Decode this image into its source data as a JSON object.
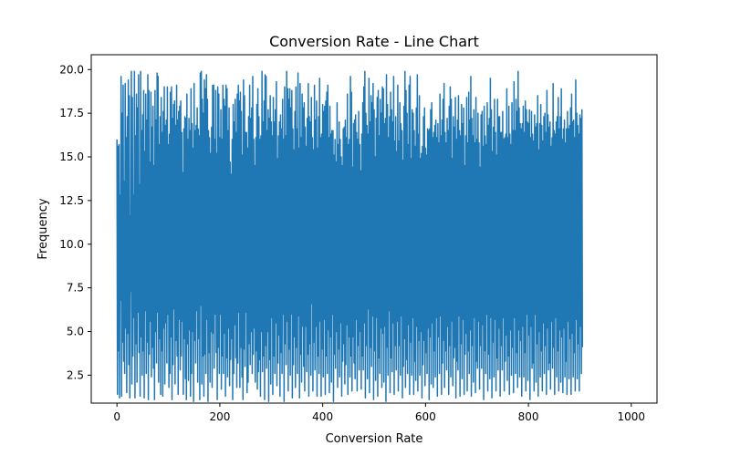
{
  "chart_data": {
    "type": "line",
    "title": "Conversion Rate - Line Chart",
    "xlabel": "Conversion Rate",
    "ylabel": "Frequency",
    "xlim": [
      -50,
      1050
    ],
    "ylim": [
      0.9,
      20.85
    ],
    "x_ticks": [
      0,
      200,
      400,
      600,
      800,
      1000
    ],
    "x_tick_labels": [
      "0",
      "200",
      "400",
      "600",
      "800",
      "1000"
    ],
    "y_ticks": [
      2.5,
      5.0,
      7.5,
      10.0,
      12.5,
      15.0,
      17.5,
      20.0
    ],
    "y_tick_labels": [
      "2.5",
      "5.0",
      "7.5",
      "10.0",
      "12.5",
      "15.0",
      "17.5",
      "20.0"
    ],
    "grid": false,
    "legend": "none",
    "series": [
      {
        "color": "#1f77b4",
        "x_start": 0,
        "x_step": 1,
        "values": [
          16.0,
          1.4,
          15.6,
          3.9,
          15.7,
          1.2,
          12.8,
          6.8,
          19.6,
          1.3,
          17.5,
          4.4,
          19.1,
          3.3,
          13.6,
          2.6,
          19.2,
          5.2,
          16.1,
          1.5,
          17.3,
          4.9,
          19.4,
          3.1,
          18.5,
          1.2,
          11.6,
          7.3,
          19.9,
          2.0,
          18.4,
          3.6,
          12.8,
          5.8,
          19.9,
          1.2,
          16.2,
          4.3,
          18.6,
          2.1,
          17.8,
          6.1,
          19.7,
          3.8,
          13.4,
          1.3,
          19.9,
          4.7,
          16.5,
          2.5,
          17.4,
          3.9,
          18.8,
          1.2,
          15.3,
          6.2,
          18.6,
          2.6,
          17.1,
          4.4,
          19.7,
          1.1,
          18.8,
          3.7,
          14.7,
          5.6,
          18.7,
          2.4,
          16.7,
          4.1,
          17.9,
          2.9,
          14.5,
          1.1,
          18.8,
          5.0,
          17.1,
          3.2,
          19.8,
          6.1,
          19.6,
          2.1,
          15.7,
          4.6,
          17.3,
          1.4,
          18.4,
          3.9,
          16.4,
          1.3,
          17.6,
          5.2,
          19.0,
          2.0,
          16.8,
          5.5,
          17.1,
          3.2,
          19.0,
          6.0,
          15.7,
          1.8,
          16.3,
          2.6,
          18.7,
          4.7,
          19.0,
          1.1,
          17.2,
          3.1,
          18.0,
          6.3,
          18.2,
          2.0,
          16.8,
          4.5,
          19.1,
          3.6,
          17.1,
          1.4,
          17.6,
          5.7,
          17.9,
          2.8,
          18.2,
          3.6,
          16.4,
          5.6,
          14.1,
          1.4,
          16.6,
          4.6,
          17.3,
          2.3,
          17.2,
          1.1,
          18.6,
          4.3,
          16.0,
          2.2,
          17.2,
          5.1,
          16.5,
          1.3,
          18.9,
          2.6,
          16.9,
          5.0,
          15.5,
          1.0,
          19.2,
          4.5,
          16.5,
          3.2,
          16.8,
          6.2,
          17.8,
          2.1,
          16.6,
          4.6,
          16.2,
          1.1,
          19.8,
          6.5,
          19.9,
          2.0,
          18.3,
          3.6,
          17.5,
          1.3,
          19.4,
          3.7,
          18.9,
          2.6,
          19.7,
          5.7,
          18.3,
          1.0,
          16.5,
          3.8,
          16.1,
          2.1,
          15.2,
          5.0,
          16.7,
          1.8,
          19.1,
          4.9,
          19.1,
          2.9,
          16.0,
          6.0,
          18.8,
          3.8,
          15.2,
          1.1,
          19.0,
          4.1,
          18.6,
          2.6,
          16.1,
          6.0,
          17.7,
          1.7,
          16.0,
          3.6,
          19.1,
          2.6,
          18.3,
          4.9,
          17.9,
          1.3,
          19.1,
          3.5,
          18.9,
          2.4,
          16.5,
          5.2,
          17.8,
          1.9,
          14.7,
          3.4,
          14.0,
          4.6,
          16.0,
          1.1,
          18.0,
          2.6,
          17.0,
          5.4,
          18.3,
          3.5,
          16.4,
          1.8,
          18.6,
          3.2,
          19.1,
          6.1,
          18.2,
          1.8,
          18.7,
          4.1,
          17.6,
          2.4,
          15.1,
          1.1,
          19.4,
          4.0,
          18.5,
          3.0,
          16.4,
          6.1,
          16.4,
          1.5,
          15.5,
          2.1,
          17.3,
          4.3,
          19.1,
          3.1,
          17.2,
          5.0,
          17.8,
          2.6,
          19.6,
          3.7,
          16.0,
          5.2,
          14.5,
          2.1,
          16.1,
          3.9,
          18.0,
          1.7,
          18.9,
          2.7,
          17.3,
          3.4,
          16.0,
          1.3,
          16.2,
          5.0,
          19.9,
          2.7,
          17.0,
          3.6,
          18.2,
          1.1,
          19.7,
          4.2,
          19.6,
          2.9,
          16.5,
          5.0,
          17.7,
          1.0,
          17.2,
          3.4,
          18.5,
          2.0,
          17.0,
          5.8,
          16.2,
          1.4,
          18.4,
          3.6,
          17.0,
          2.6,
          17.7,
          5.5,
          19.3,
          1.9,
          14.9,
          3.2,
          16.2,
          4.8,
          17.0,
          1.3,
          17.4,
          3.8,
          16.6,
          2.6,
          18.3,
          6.0,
          16.0,
          1.0,
          19.0,
          4.3,
          16.2,
          3.1,
          19.9,
          5.6,
          18.9,
          1.6,
          18.3,
          4.0,
          18.9,
          2.5,
          17.8,
          6.0,
          18.8,
          1.2,
          16.6,
          3.1,
          15.4,
          4.7,
          17.6,
          1.8,
          19.0,
          4.1,
          16.6,
          2.6,
          19.8,
          5.9,
          15.5,
          1.2,
          19.2,
          3.7,
          16.1,
          2.1,
          18.6,
          5.3,
          17.8,
          3.0,
          18.1,
          1.6,
          16.7,
          5.3,
          15.6,
          2.7,
          17.2,
          3.7,
          19.2,
          1.3,
          17.3,
          4.3,
          17.0,
          2.5,
          18.4,
          6.6,
          16.1,
          1.6,
          15.4,
          4.4,
          19.1,
          2.8,
          17.1,
          5.3,
          18.2,
          1.3,
          15.5,
          3.6,
          17.3,
          2.6,
          19.5,
          5.6,
          16.1,
          1.3,
          16.3,
          4.0,
          18.0,
          2.4,
          17.6,
          5.7,
          17.9,
          1.4,
          18.2,
          3.6,
          18.7,
          2.6,
          19.1,
          5.1,
          16.1,
          1.5,
          17.9,
          4.7,
          16.3,
          2.1,
          16.5,
          6.0,
          16.5,
          1.0,
          15.1,
          3.7,
          16.0,
          2.9,
          14.7,
          5.0,
          18.1,
          1.8,
          15.7,
          4.0,
          17.0,
          2.4,
          16.0,
          5.5,
          15.0,
          1.3,
          14.5,
          3.3,
          16.6,
          4.3,
          16.7,
          2.0,
          17.1,
          3.1,
          16.1,
          5.4,
          18.6,
          1.4,
          15.7,
          4.7,
          16.0,
          2.4,
          19.6,
          3.6,
          18.7,
          1.6,
          14.4,
          4.7,
          16.9,
          3.2,
          17.1,
          2.3,
          17.4,
          5.7,
          16.4,
          1.6,
          16.0,
          4.2,
          17.6,
          2.8,
          15.7,
          5.0,
          14.2,
          1.7,
          16.3,
          3.6,
          18.1,
          2.8,
          19.0,
          5.5,
          19.9,
          1.2,
          17.5,
          4.2,
          16.8,
          2.3,
          16.3,
          6.3,
          19.5,
          1.5,
          17.0,
          4.1,
          18.5,
          3.0,
          18.1,
          5.9,
          19.2,
          1.1,
          17.7,
          3.9,
          15.0,
          2.2,
          17.2,
          5.8,
          18.4,
          1.3,
          18.8,
          3.5,
          16.2,
          2.6,
          18.3,
          5.2,
          17.5,
          1.8,
          19.0,
          4.9,
          18.9,
          2.1,
          16.9,
          5.3,
          17.2,
          1.0,
          19.7,
          4.1,
          18.0,
          2.5,
          16.1,
          6.2,
          17.3,
          1.5,
          18.7,
          3.5,
          17.7,
          2.7,
          17.0,
          5.5,
          19.6,
          1.4,
          15.9,
          4.2,
          17.3,
          2.8,
          15.3,
          5.6,
          19.1,
          1.6,
          15.9,
          4.2,
          18.1,
          2.5,
          16.9,
          5.9,
          16.5,
          1.2,
          14.8,
          3.0,
          17.9,
          4.6,
          19.9,
          1.8,
          18.8,
          3.4,
          17.5,
          2.6,
          15.7,
          5.4,
          19.1,
          1.4,
          19.6,
          4.4,
          14.9,
          2.5,
          17.7,
          5.8,
          17.5,
          1.4,
          16.5,
          3.3,
          15.6,
          2.2,
          17.8,
          5.3,
          19.7,
          1.6,
          16.3,
          4.5,
          18.5,
          2.5,
          14.9,
          5.0,
          15.2,
          1.2,
          15.6,
          3.1,
          17.3,
          4.5,
          17.8,
          1.9,
          15.5,
          3.8,
          15.1,
          2.6,
          16.6,
          5.2,
          16.5,
          1.1,
          16.6,
          4.7,
          17.7,
          2.0,
          18.1,
          5.5,
          16.1,
          1.8,
          16.4,
          3.9,
          16.8,
          2.4,
          17.1,
          5.8,
          16.1,
          1.3,
          16.9,
          4.7,
          15.8,
          2.6,
          18.6,
          5.9,
          16.2,
          1.4,
          17.1,
          3.2,
          18.3,
          4.5,
          19.2,
          1.8,
          16.4,
          3.9,
          15.8,
          2.8,
          17.2,
          5.3,
          16.5,
          1.4,
          17.9,
          4.2,
          19.0,
          2.4,
          18.3,
          5.6,
          14.9,
          1.9,
          17.3,
          3.5,
          16.7,
          4.1,
          18.4,
          1.2,
          16.0,
          3.3,
          17.1,
          2.8,
          18.5,
          5.9,
          16.5,
          1.3,
          16.2,
          4.3,
          18.0,
          2.3,
          16.9,
          5.7,
          17.8,
          1.4,
          14.5,
          3.7,
          16.2,
          4.9,
          18.4,
          1.6,
          15.8,
          3.9,
          18.7,
          2.6,
          17.1,
          5.1,
          19.6,
          1.3,
          17.2,
          4.2,
          16.2,
          2.1,
          17.7,
          5.8,
          15.8,
          1.5,
          18.4,
          3.3,
          16.0,
          2.9,
          17.5,
          5.6,
          15.8,
          1.7,
          14.4,
          4.2,
          17.4,
          2.9,
          17.6,
          5.4,
          15.6,
          1.1,
          17.9,
          3.9,
          16.2,
          2.6,
          15.7,
          6.0,
          18.1,
          1.6,
          16.8,
          3.7,
          17.2,
          2.3,
          19.5,
          5.8,
          17.7,
          1.2,
          15.3,
          4.4,
          16.7,
          2.4,
          18.3,
          5.7,
          16.4,
          1.6,
          15.1,
          3.5,
          18.3,
          2.8,
          17.3,
          5.2,
          17.3,
          1.3,
          16.4,
          4.2,
          16.4,
          2.8,
          17.6,
          5.8,
          16.0,
          1.6,
          16.1,
          3.3,
          16.3,
          4.8,
          18.9,
          2.2,
          16.1,
          3.6,
          17.9,
          1.4,
          16.3,
          5.1,
          15.7,
          2.5,
          18.1,
          4.1,
          16.5,
          1.5,
          19.3,
          5.8,
          16.5,
          2.6,
          18.3,
          3.8,
          17.6,
          1.8,
          19.9,
          5.1,
          17.8,
          2.4,
          16.9,
          4.5,
          16.6,
          1.3,
          16.9,
          5.3,
          17.9,
          2.4,
          16.4,
          3.8,
          18.2,
          1.6,
          17.7,
          6.0,
          17.0,
          2.2,
          16.9,
          4.8,
          17.7,
          1.1,
          16.1,
          5.3,
          17.6,
          2.9,
          16.3,
          3.2,
          15.9,
          1.6,
          17.4,
          6.0,
          16.7,
          2.1,
          16.9,
          4.3,
          18.5,
          1.3,
          15.4,
          5.0,
          16.9,
          2.4,
          18.0,
          3.9,
          16.8,
          1.6,
          15.9,
          5.5,
          17.3,
          2.6,
          17.5,
          4.2,
          16.4,
          1.4,
          18.8,
          5.2,
          17.4,
          2.8,
          16.7,
          3.2,
          17.0,
          1.7,
          15.6,
          5.6,
          16.1,
          2.9,
          19.2,
          4.1,
          16.5,
          1.4,
          16.3,
          5.8,
          17.0,
          2.4,
          17.3,
          3.9,
          18.4,
          1.6,
          16.6,
          5.1,
          17.3,
          2.1,
          18.9,
          4.7,
          16.0,
          1.5,
          16.6,
          5.2,
          17.1,
          2.4,
          15.8,
          3.3,
          16.6,
          1.4,
          17.6,
          5.6,
          16.6,
          2.3,
          16.8,
          4.6,
          17.8,
          1.4,
          18.6,
          4.9,
          17.0,
          2.4,
          17.1,
          3.8,
          16.1,
          1.6,
          19.4,
          5.7,
          17.5,
          2.3,
          16.8,
          4.3,
          16.3,
          1.6,
          17.4,
          5.3,
          17.2,
          2.6,
          17.7,
          4.1
        ]
      }
    ]
  }
}
